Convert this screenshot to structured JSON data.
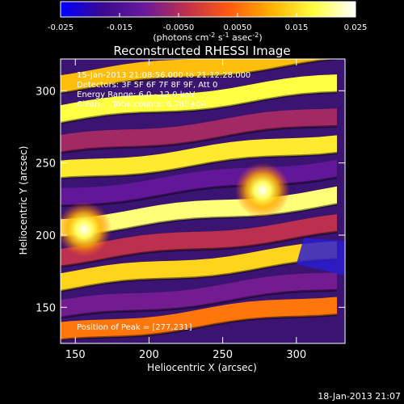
{
  "colorbar": {
    "ticks": [
      "-0.025",
      "-0.015",
      "-0.0050",
      "0.0050",
      "0.015",
      "0.025"
    ],
    "units_main": "(photons cm",
    "units_sup1": "-2",
    "units_mid1": " s",
    "units_sup2": "-1",
    "units_mid2": " asec",
    "units_sup3": "-2",
    "units_end": ")",
    "range": [
      -0.025,
      0.025
    ],
    "colors": [
      "#0000ff",
      "#3a0a90",
      "#6a1a9a",
      "#c0304a",
      "#ff5a10",
      "#ffb000",
      "#ffff40",
      "#ffffff"
    ]
  },
  "chart_data": {
    "type": "heatmap",
    "title": "Reconstructed RHESSI Image",
    "xlabel": "Heliocentric X (arcsec)",
    "ylabel": "Heliocentric Y (arcsec)",
    "xlim": [
      140,
      333
    ],
    "ylim": [
      125,
      322
    ],
    "xticks": [
      150,
      200,
      250,
      300
    ],
    "yticks": [
      150,
      200,
      250,
      300
    ],
    "colorscale_range": [
      -0.025,
      0.025
    ],
    "bands": [
      {
        "y": 306,
        "value": 0.012
      },
      {
        "y": 284,
        "value": 0.018
      },
      {
        "y": 262,
        "value": -0.006
      },
      {
        "y": 244,
        "value": 0.016
      },
      {
        "y": 226,
        "value": -0.012
      },
      {
        "y": 206,
        "value": 0.02
      },
      {
        "y": 186,
        "value": -0.004
      },
      {
        "y": 168,
        "value": 0.014
      },
      {
        "y": 148,
        "value": -0.01
      },
      {
        "y": 132,
        "value": 0.006
      }
    ],
    "peaks": [
      {
        "x": 277,
        "y": 231,
        "value": 0.025
      },
      {
        "x": 156,
        "y": 204,
        "value": 0.024
      }
    ],
    "annotations": {
      "time": "15-Jan-2013 21:08:56.000 to 21:12:28.000",
      "detectors": "Detectors: 3F 5F 6F 7F 8F 9F, Att 0",
      "energy": "Energy Range: 6.0 - 12.0 keV",
      "clean": "Clean     Total counts: 6.78E+04",
      "peak": "Position of Peak = [277,231]"
    }
  },
  "footer": {
    "timestamp": "18-Jan-2013 21:07"
  }
}
